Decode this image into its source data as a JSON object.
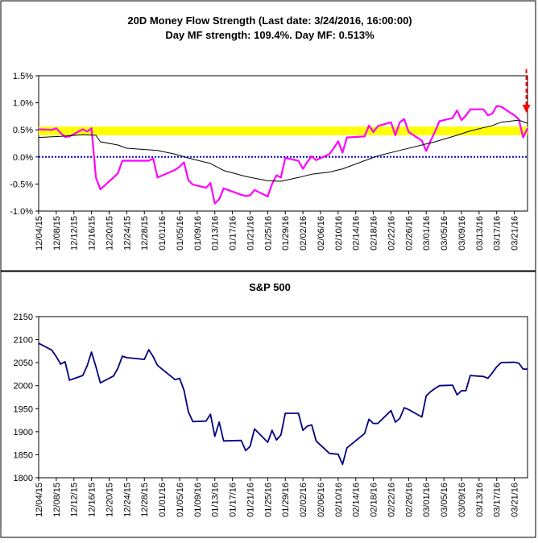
{
  "colors": {
    "background": "#ffffff",
    "panel_border": "#000000",
    "band": "#ffff00",
    "zero_line": "#0000cc",
    "mf_line": "#ff00ff",
    "avg_line": "#000000",
    "sp_line": "#000080",
    "arrow": "#ff0000"
  },
  "chart_data": [
    {
      "type": "line",
      "title_line1": "20D Money Flow Strength (Last date: 3/24/2016, 16:00:00)",
      "title_line2": "Day MF strength: 109.4%. Day MF: 0.513%",
      "ylim": [
        -1.0,
        1.5
      ],
      "y_ticks": [
        1.5,
        1.0,
        0.5,
        0.0,
        -0.5,
        -1.0
      ],
      "y_tick_labels": [
        "1.5%",
        "1.0%",
        "0.5%",
        "0.0%",
        "-0.5%",
        "-1.0%"
      ],
      "x_tick_labels": [
        "12/04/15",
        "12/08/15",
        "12/12/15",
        "12/16/15",
        "12/20/15",
        "12/24/15",
        "12/28/15",
        "01/01/16",
        "01/05/16",
        "01/09/16",
        "01/13/16",
        "01/17/16",
        "01/21/16",
        "01/25/16",
        "01/29/16",
        "02/02/16",
        "02/06/16",
        "02/10/16",
        "02/14/16",
        "02/18/16",
        "02/22/16",
        "02/26/16",
        "03/01/16",
        "03/05/16",
        "03/09/16",
        "03/13/16",
        "03/17/16",
        "03/21/16"
      ],
      "x_start": "2015-12-04",
      "x_end": "2016-03-24",
      "highlight_band": [
        0.4,
        0.56
      ],
      "reference_line": 0.0,
      "arrow_at": "2016-03-23",
      "series": [
        {
          "role": "daily_mf",
          "points": [
            [
              "2015-12-04",
              0.51
            ],
            [
              "2015-12-07",
              0.5
            ],
            [
              "2015-12-08",
              0.53
            ],
            [
              "2015-12-09",
              0.44
            ],
            [
              "2015-12-10",
              0.37
            ],
            [
              "2015-12-11",
              0.38
            ],
            [
              "2015-12-14",
              0.51
            ],
            [
              "2015-12-15",
              0.47
            ],
            [
              "2015-12-16",
              0.53
            ],
            [
              "2015-12-17",
              -0.38
            ],
            [
              "2015-12-18",
              -0.6
            ],
            [
              "2015-12-21",
              -0.38
            ],
            [
              "2015-12-22",
              -0.3
            ],
            [
              "2015-12-23",
              -0.07
            ],
            [
              "2015-12-24",
              -0.07
            ],
            [
              "2015-12-28",
              -0.07
            ],
            [
              "2015-12-29",
              -0.07
            ],
            [
              "2015-12-30",
              -0.03
            ],
            [
              "2015-12-31",
              -0.38
            ],
            [
              "2016-01-04",
              -0.24
            ],
            [
              "2016-01-05",
              -0.18
            ],
            [
              "2016-01-06",
              -0.1
            ],
            [
              "2016-01-07",
              -0.43
            ],
            [
              "2016-01-08",
              -0.51
            ],
            [
              "2016-01-11",
              -0.57
            ],
            [
              "2016-01-12",
              -0.48
            ],
            [
              "2016-01-13",
              -0.86
            ],
            [
              "2016-01-14",
              -0.78
            ],
            [
              "2016-01-15",
              -0.58
            ],
            [
              "2016-01-19",
              -0.7
            ],
            [
              "2016-01-20",
              -0.72
            ],
            [
              "2016-01-21",
              -0.71
            ],
            [
              "2016-01-22",
              -0.61
            ],
            [
              "2016-01-25",
              -0.73
            ],
            [
              "2016-01-26",
              -0.5
            ],
            [
              "2016-01-27",
              -0.34
            ],
            [
              "2016-01-28",
              -0.38
            ],
            [
              "2016-01-29",
              -0.02
            ],
            [
              "2016-02-01",
              -0.07
            ],
            [
              "2016-02-02",
              -0.22
            ],
            [
              "2016-02-03",
              -0.09
            ],
            [
              "2016-02-04",
              0.01
            ],
            [
              "2016-02-05",
              -0.06
            ],
            [
              "2016-02-08",
              0.05
            ],
            [
              "2016-02-09",
              0.16
            ],
            [
              "2016-02-10",
              0.29
            ],
            [
              "2016-02-11",
              0.08
            ],
            [
              "2016-02-12",
              0.36
            ],
            [
              "2016-02-16",
              0.38
            ],
            [
              "2016-02-17",
              0.58
            ],
            [
              "2016-02-18",
              0.46
            ],
            [
              "2016-02-19",
              0.57
            ],
            [
              "2016-02-22",
              0.64
            ],
            [
              "2016-02-23",
              0.4
            ],
            [
              "2016-02-24",
              0.64
            ],
            [
              "2016-02-25",
              0.7
            ],
            [
              "2016-02-26",
              0.46
            ],
            [
              "2016-02-29",
              0.3
            ],
            [
              "2016-03-01",
              0.11
            ],
            [
              "2016-03-02",
              0.3
            ],
            [
              "2016-03-03",
              0.47
            ],
            [
              "2016-03-04",
              0.66
            ],
            [
              "2016-03-07",
              0.72
            ],
            [
              "2016-03-08",
              0.86
            ],
            [
              "2016-03-09",
              0.68
            ],
            [
              "2016-03-10",
              0.76
            ],
            [
              "2016-03-11",
              0.88
            ],
            [
              "2016-03-14",
              0.88
            ],
            [
              "2016-03-15",
              0.77
            ],
            [
              "2016-03-16",
              0.8
            ],
            [
              "2016-03-17",
              0.94
            ],
            [
              "2016-03-18",
              0.93
            ],
            [
              "2016-03-21",
              0.77
            ],
            [
              "2016-03-22",
              0.7
            ],
            [
              "2016-03-23",
              0.36
            ],
            [
              "2016-03-24",
              0.53
            ]
          ]
        },
        {
          "role": "20d_strength",
          "points": [
            [
              "2015-12-04",
              0.36
            ],
            [
              "2015-12-09",
              0.38
            ],
            [
              "2015-12-14",
              0.41
            ],
            [
              "2015-12-17",
              0.4
            ],
            [
              "2015-12-18",
              0.28
            ],
            [
              "2015-12-22",
              0.22
            ],
            [
              "2015-12-24",
              0.16
            ],
            [
              "2015-12-31",
              0.12
            ],
            [
              "2016-01-04",
              0.05
            ],
            [
              "2016-01-07",
              -0.02
            ],
            [
              "2016-01-12",
              -0.12
            ],
            [
              "2016-01-15",
              -0.25
            ],
            [
              "2016-01-20",
              -0.36
            ],
            [
              "2016-01-25",
              -0.44
            ],
            [
              "2016-01-28",
              -0.45
            ],
            [
              "2016-02-01",
              -0.38
            ],
            [
              "2016-02-04",
              -0.32
            ],
            [
              "2016-02-08",
              -0.28
            ],
            [
              "2016-02-11",
              -0.22
            ],
            [
              "2016-02-16",
              -0.07
            ],
            [
              "2016-02-19",
              0.02
            ],
            [
              "2016-02-24",
              0.12
            ],
            [
              "2016-02-29",
              0.22
            ],
            [
              "2016-03-03",
              0.28
            ],
            [
              "2016-03-08",
              0.4
            ],
            [
              "2016-03-11",
              0.48
            ],
            [
              "2016-03-16",
              0.58
            ],
            [
              "2016-03-18",
              0.64
            ],
            [
              "2016-03-22",
              0.68
            ],
            [
              "2016-03-24",
              0.62
            ]
          ]
        }
      ]
    },
    {
      "type": "line",
      "title": "S&P 500",
      "ylim": [
        1800,
        2150
      ],
      "y_ticks": [
        2150,
        2100,
        2050,
        2000,
        1950,
        1900,
        1850,
        1800
      ],
      "y_tick_labels": [
        "2150",
        "2100",
        "2050",
        "2000",
        "1950",
        "1900",
        "1850",
        "1800"
      ],
      "x_tick_labels": [
        "12/04/15",
        "12/08/15",
        "12/12/15",
        "12/16/15",
        "12/20/15",
        "12/24/15",
        "12/28/15",
        "01/01/16",
        "01/05/16",
        "01/09/16",
        "01/13/16",
        "01/17/16",
        "01/21/16",
        "01/25/16",
        "01/29/16",
        "02/02/16",
        "02/06/16",
        "02/10/16",
        "02/14/16",
        "02/18/16",
        "02/22/16",
        "02/26/16",
        "03/01/16",
        "03/05/16",
        "03/09/16",
        "03/13/16",
        "03/17/16",
        "03/21/16"
      ],
      "x_start": "2015-12-04",
      "x_end": "2016-03-24",
      "series": [
        {
          "role": "close",
          "points": [
            [
              "2015-12-04",
              2092
            ],
            [
              "2015-12-07",
              2077
            ],
            [
              "2015-12-08",
              2063
            ],
            [
              "2015-12-09",
              2047
            ],
            [
              "2015-12-10",
              2052
            ],
            [
              "2015-12-11",
              2012
            ],
            [
              "2015-12-14",
              2022
            ],
            [
              "2015-12-15",
              2043
            ],
            [
              "2015-12-16",
              2073
            ],
            [
              "2015-12-17",
              2041
            ],
            [
              "2015-12-18",
              2006
            ],
            [
              "2015-12-21",
              2021
            ],
            [
              "2015-12-22",
              2038
            ],
            [
              "2015-12-23",
              2064
            ],
            [
              "2015-12-24",
              2061
            ],
            [
              "2015-12-28",
              2057
            ],
            [
              "2015-12-29",
              2078
            ],
            [
              "2015-12-30",
              2063
            ],
            [
              "2015-12-31",
              2044
            ],
            [
              "2016-01-04",
              2013
            ],
            [
              "2016-01-05",
              2016
            ],
            [
              "2016-01-06",
              1990
            ],
            [
              "2016-01-07",
              1943
            ],
            [
              "2016-01-08",
              1922
            ],
            [
              "2016-01-11",
              1923
            ],
            [
              "2016-01-12",
              1938
            ],
            [
              "2016-01-13",
              1890
            ],
            [
              "2016-01-14",
              1921
            ],
            [
              "2016-01-15",
              1880
            ],
            [
              "2016-01-19",
              1881
            ],
            [
              "2016-01-20",
              1859
            ],
            [
              "2016-01-21",
              1868
            ],
            [
              "2016-01-22",
              1906
            ],
            [
              "2016-01-25",
              1877
            ],
            [
              "2016-01-26",
              1903
            ],
            [
              "2016-01-27",
              1882
            ],
            [
              "2016-01-28",
              1893
            ],
            [
              "2016-01-29",
              1940
            ],
            [
              "2016-02-01",
              1940
            ],
            [
              "2016-02-02",
              1903
            ],
            [
              "2016-02-03",
              1912
            ],
            [
              "2016-02-04",
              1915
            ],
            [
              "2016-02-05",
              1880
            ],
            [
              "2016-02-08",
              1853
            ],
            [
              "2016-02-09",
              1852
            ],
            [
              "2016-02-10",
              1851
            ],
            [
              "2016-02-11",
              1829
            ],
            [
              "2016-02-12",
              1865
            ],
            [
              "2016-02-16",
              1896
            ],
            [
              "2016-02-17",
              1927
            ],
            [
              "2016-02-18",
              1918
            ],
            [
              "2016-02-19",
              1918
            ],
            [
              "2016-02-22",
              1946
            ],
            [
              "2016-02-23",
              1921
            ],
            [
              "2016-02-24",
              1929
            ],
            [
              "2016-02-25",
              1952
            ],
            [
              "2016-02-26",
              1948
            ],
            [
              "2016-02-29",
              1932
            ],
            [
              "2016-03-01",
              1978
            ],
            [
              "2016-03-02",
              1987
            ],
            [
              "2016-03-03",
              1994
            ],
            [
              "2016-03-04",
              2000
            ],
            [
              "2016-03-07",
              2001
            ],
            [
              "2016-03-08",
              1980
            ],
            [
              "2016-03-09",
              1989
            ],
            [
              "2016-03-10",
              1989
            ],
            [
              "2016-03-11",
              2022
            ],
            [
              "2016-03-14",
              2020
            ],
            [
              "2016-03-15",
              2016
            ],
            [
              "2016-03-16",
              2028
            ],
            [
              "2016-03-17",
              2041
            ],
            [
              "2016-03-18",
              2050
            ],
            [
              "2016-03-21",
              2051
            ],
            [
              "2016-03-22",
              2049
            ],
            [
              "2016-03-23",
              2036
            ],
            [
              "2016-03-24",
              2036
            ]
          ]
        }
      ]
    }
  ]
}
